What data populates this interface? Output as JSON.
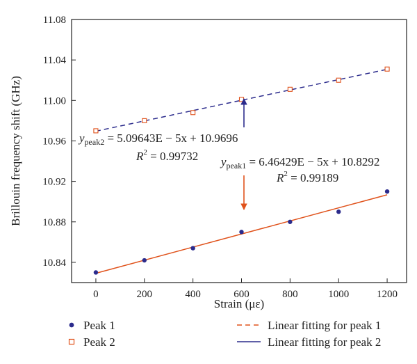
{
  "chart_data": {
    "type": "scatter",
    "xlabel": "Strain (με)",
    "ylabel": "Brillouin frequency shift (GHz)",
    "xlim": [
      -100,
      1280
    ],
    "ylim": [
      10.82,
      11.08
    ],
    "xticks": [
      0,
      200,
      400,
      600,
      800,
      1000,
      1200
    ],
    "yticks": [
      10.84,
      10.88,
      10.92,
      10.96,
      11.0,
      11.04,
      11.08
    ],
    "ytick_labels": [
      "10.84",
      "10.88",
      "10.92",
      "10.96",
      "11.00",
      "11.04",
      "11.08"
    ],
    "grid": false,
    "legend_position": "bottom",
    "series": [
      {
        "name": "Peak 1",
        "marker": "filled-circle",
        "color": "#2b2b8c",
        "x": [
          0,
          200,
          400,
          600,
          800,
          1000,
          1200
        ],
        "y": [
          10.83,
          10.842,
          10.854,
          10.87,
          10.88,
          10.89,
          10.91
        ]
      },
      {
        "name": "Peak 2",
        "marker": "open-square",
        "color": "#e0521b",
        "x": [
          0,
          200,
          400,
          600,
          800,
          1000,
          1200
        ],
        "y": [
          10.97,
          10.98,
          10.988,
          11.001,
          11.011,
          11.02,
          11.031
        ]
      }
    ],
    "fits": [
      {
        "name": "Linear fitting for peak 1",
        "legend_style": "dashed",
        "legend_color": "#e0521b",
        "plot_style": "solid",
        "plot_color": "#e0521b",
        "slope": 6.46429e-05,
        "intercept": 10.8292
      },
      {
        "name": "Linear fitting for peak 2",
        "legend_style": "solid",
        "legend_color": "#2b2b8c",
        "plot_style": "dashed",
        "plot_color": "#2b2b8c",
        "slope": 5.09643e-05,
        "intercept": 10.9696
      }
    ],
    "annotations": {
      "peak2": {
        "y": "y",
        "sub": "peak2",
        "eq": " = 5.09643E − 5x + 10.9696",
        "r": "R",
        "sup": "2",
        "req": " = 0.99732",
        "arrow_to": [
          630,
          10.997
        ]
      },
      "peak1": {
        "y": "y",
        "sub": "peak1",
        "eq": " = 6.46429E − 5x + 10.8292",
        "r": "R",
        "sup": "2",
        "req": " = 0.99189",
        "arrow_to": [
          630,
          10.871
        ]
      }
    }
  }
}
